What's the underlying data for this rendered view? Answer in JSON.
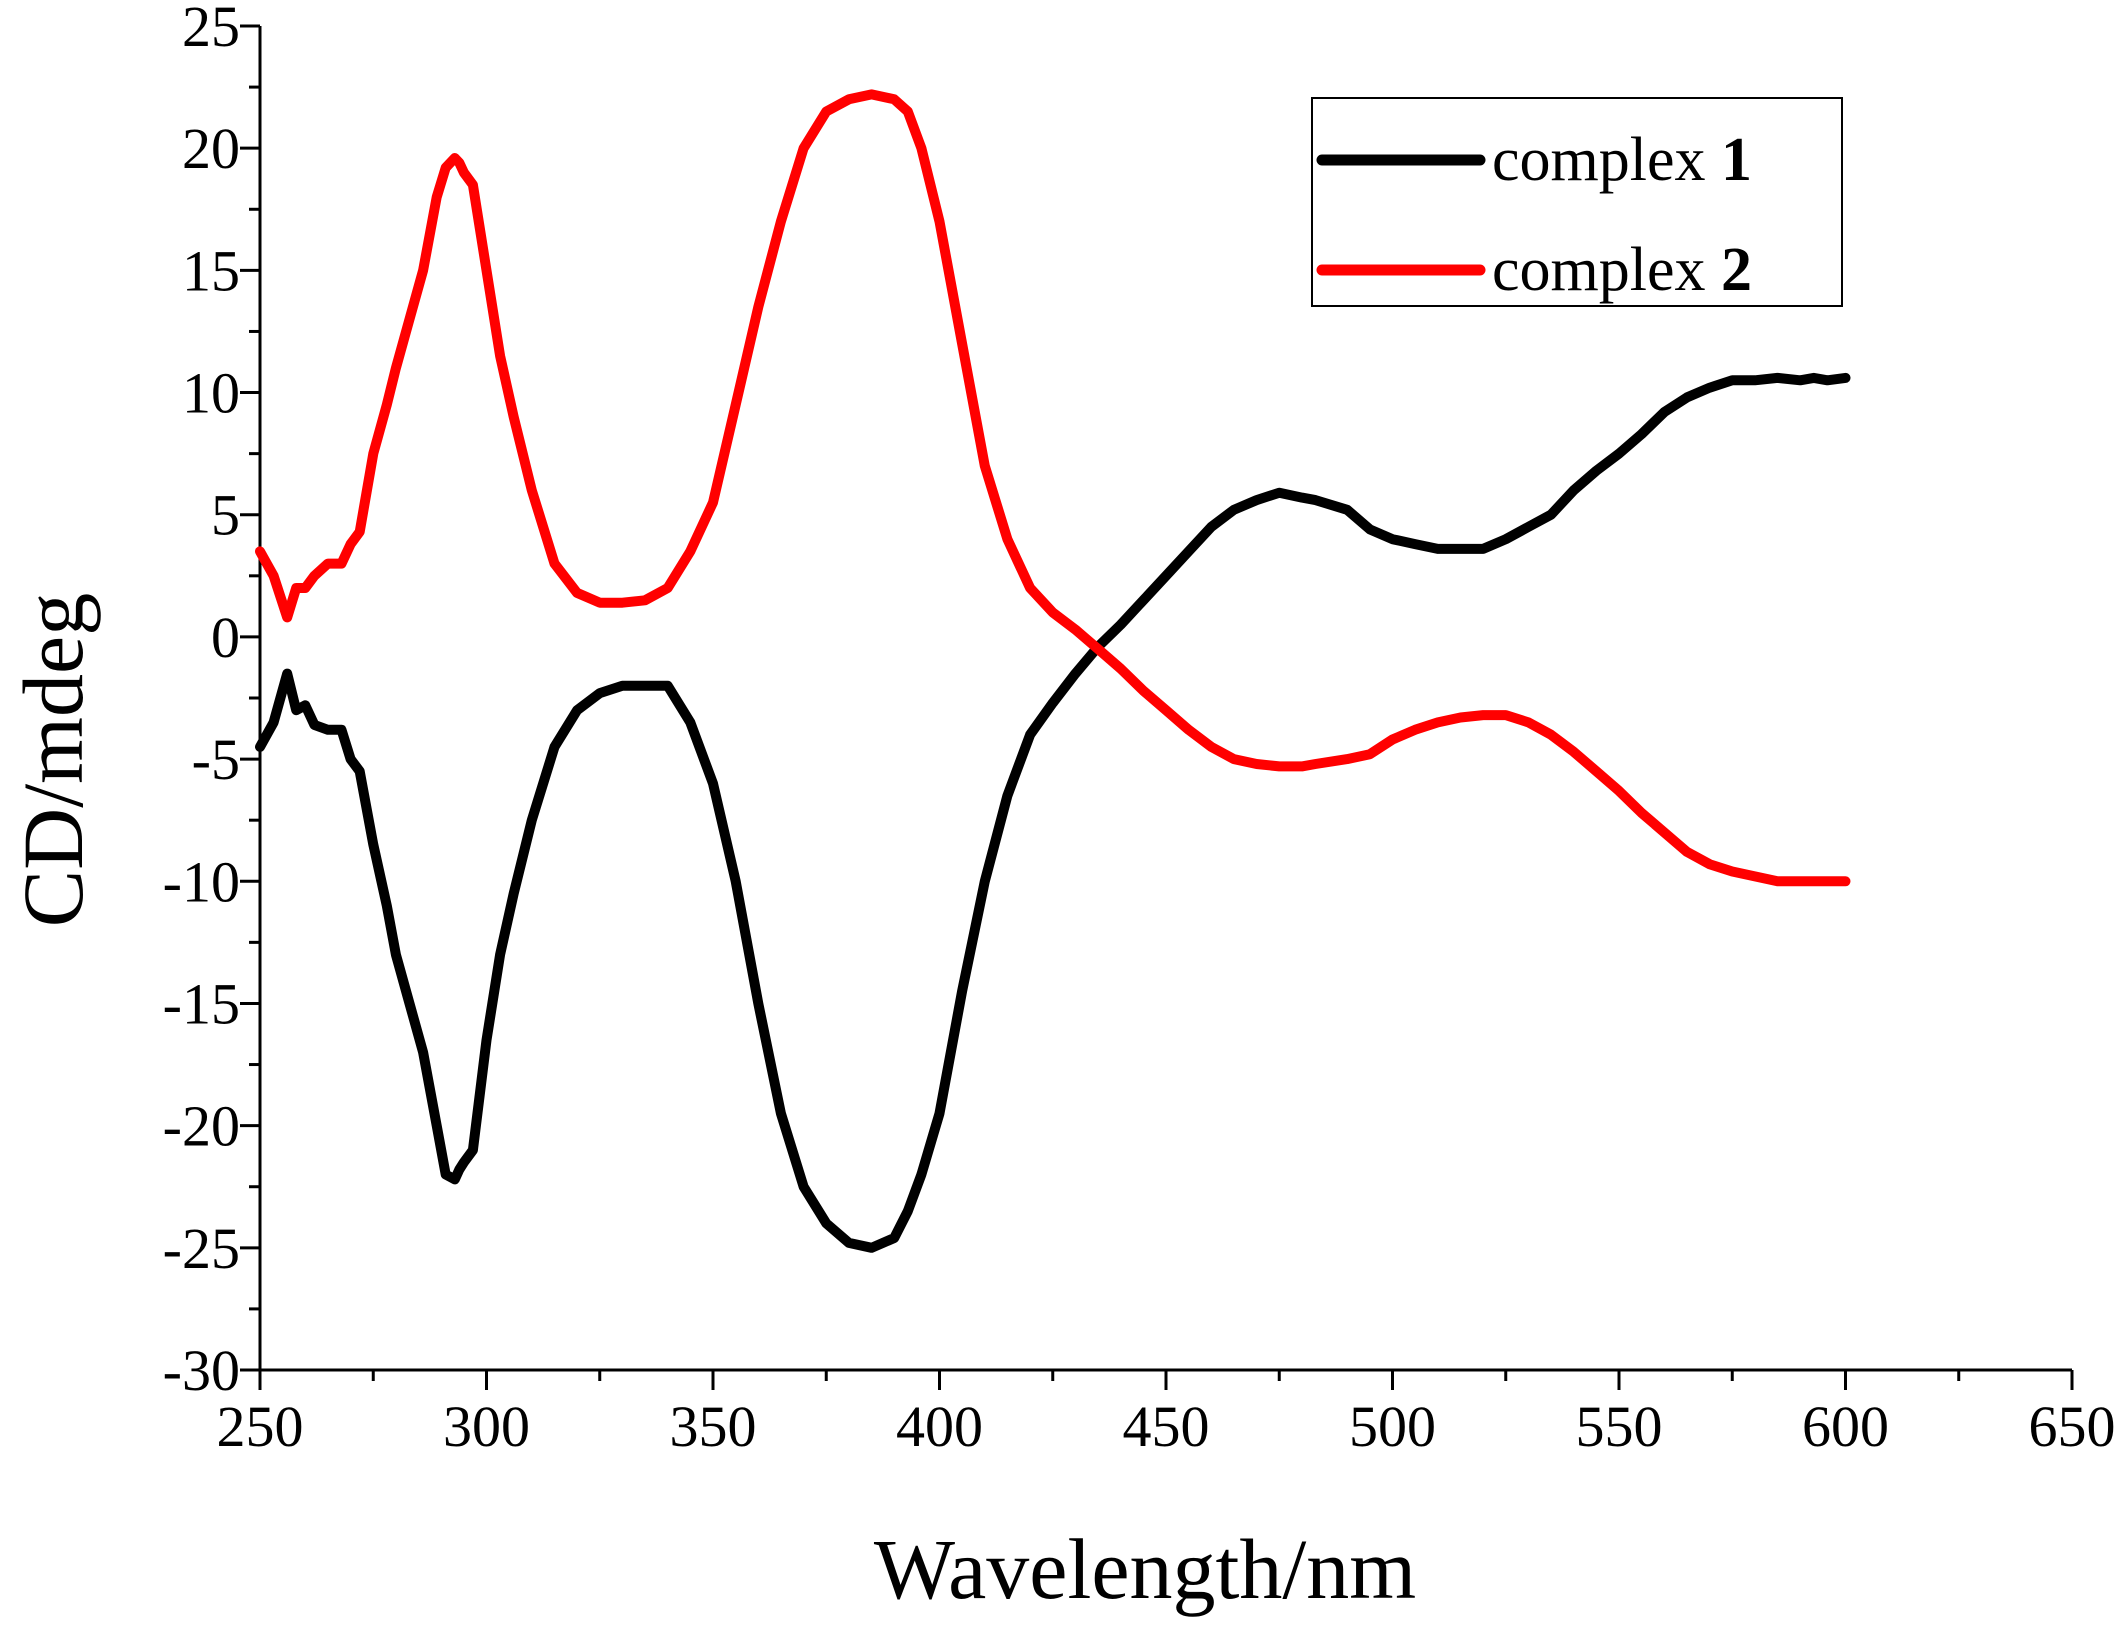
{
  "chart_data": {
    "type": "line",
    "title": "",
    "xlabel": "Wavelength/nm",
    "ylabel": "CD/mdeg",
    "xlim": [
      250,
      650
    ],
    "ylim": [
      -30,
      25
    ],
    "xticks": [
      250,
      300,
      350,
      400,
      450,
      500,
      550,
      600,
      650
    ],
    "yticks": [
      -30,
      -25,
      -20,
      -15,
      -10,
      -5,
      0,
      5,
      10,
      15,
      20,
      25
    ],
    "grid": false,
    "legend_position": "top-right",
    "series": [
      {
        "name": "complex",
        "name_number": "1",
        "color": "#000000",
        "x": [
          250,
          253,
          256,
          258,
          260,
          262,
          265,
          268,
          270,
          272,
          275,
          278,
          280,
          283,
          286,
          289,
          291,
          293,
          294,
          295,
          297,
          300,
          303,
          306,
          310,
          315,
          320,
          325,
          330,
          335,
          340,
          345,
          350,
          355,
          360,
          365,
          370,
          375,
          380,
          385,
          390,
          393,
          396,
          400,
          405,
          410,
          415,
          420,
          425,
          430,
          435,
          440,
          445,
          450,
          455,
          460,
          465,
          470,
          475,
          480,
          483,
          490,
          495,
          500,
          505,
          510,
          515,
          520,
          525,
          530,
          535,
          540,
          545,
          550,
          555,
          560,
          565,
          570,
          575,
          580,
          585,
          590,
          593,
          596,
          600
        ],
        "y": [
          -4.5,
          -3.5,
          -1.5,
          -3,
          -2.8,
          -3.6,
          -3.8,
          -3.8,
          -5,
          -5.5,
          -8.5,
          -11,
          -13,
          -15,
          -17,
          -20,
          -22,
          -22.2,
          -21.8,
          -21.5,
          -21,
          -16.5,
          -13,
          -10.5,
          -7.5,
          -4.5,
          -3,
          -2.3,
          -2,
          -2,
          -2,
          -3.5,
          -6,
          -10,
          -15,
          -19.5,
          -22.5,
          -24,
          -24.8,
          -25,
          -24.6,
          -23.5,
          -22,
          -19.5,
          -14.5,
          -10,
          -6.5,
          -4,
          -2.7,
          -1.5,
          -0.4,
          0.5,
          1.5,
          2.5,
          3.5,
          4.5,
          5.2,
          5.6,
          5.9,
          5.7,
          5.6,
          5.2,
          4.4,
          4,
          3.8,
          3.6,
          3.6,
          3.6,
          4,
          4.5,
          5,
          6,
          6.8,
          7.5,
          8.3,
          9.2,
          9.8,
          10.2,
          10.5,
          10.5,
          10.6,
          10.5,
          10.6,
          10.5,
          10.6
        ]
      },
      {
        "name": "complex",
        "name_number": "2",
        "color": "#ff0000",
        "x": [
          250,
          253,
          256,
          258,
          260,
          262,
          265,
          268,
          270,
          272,
          275,
          278,
          280,
          283,
          286,
          289,
          291,
          293,
          294,
          295,
          297,
          300,
          303,
          306,
          310,
          315,
          320,
          325,
          330,
          335,
          340,
          345,
          350,
          355,
          360,
          365,
          370,
          375,
          380,
          385,
          390,
          393,
          396,
          400,
          405,
          410,
          415,
          420,
          425,
          430,
          435,
          440,
          445,
          450,
          455,
          460,
          465,
          470,
          475,
          480,
          483,
          490,
          495,
          500,
          505,
          510,
          515,
          520,
          525,
          530,
          535,
          540,
          545,
          550,
          555,
          560,
          565,
          570,
          575,
          580,
          585,
          590,
          593,
          596,
          600
        ],
        "y": [
          3.5,
          2.5,
          0.8,
          2,
          2,
          2.5,
          3,
          3,
          3.8,
          4.3,
          7.5,
          9.5,
          11,
          13,
          15,
          18,
          19.2,
          19.6,
          19.4,
          19,
          18.5,
          15,
          11.5,
          9,
          6,
          3,
          1.8,
          1.4,
          1.4,
          1.5,
          2,
          3.5,
          5.5,
          9.5,
          13.5,
          17,
          20,
          21.5,
          22,
          22.2,
          22,
          21.5,
          20,
          17,
          12,
          7,
          4,
          2,
          1,
          0.3,
          -0.5,
          -1.3,
          -2.2,
          -3,
          -3.8,
          -4.5,
          -5,
          -5.2,
          -5.3,
          -5.3,
          -5.2,
          -5,
          -4.8,
          -4.2,
          -3.8,
          -3.5,
          -3.3,
          -3.2,
          -3.2,
          -3.5,
          -4,
          -4.7,
          -5.5,
          -6.3,
          -7.2,
          -8,
          -8.8,
          -9.3,
          -9.6,
          -9.8,
          -10,
          -10,
          -10,
          -10,
          -10
        ]
      }
    ]
  }
}
